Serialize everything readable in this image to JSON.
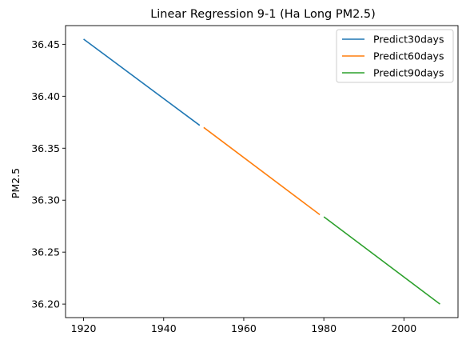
{
  "chart_data": {
    "type": "line",
    "title": "Linear Regression 9-1 (Ha Long PM2.5)",
    "xlabel": "",
    "ylabel": "PM2.5",
    "xlim": [
      1915.5,
      2013.5
    ],
    "ylim": [
      36.187,
      36.468
    ],
    "xticks": [
      1920,
      1940,
      1960,
      1980,
      2000
    ],
    "yticks": [
      36.2,
      36.25,
      36.3,
      36.35,
      36.4,
      36.45
    ],
    "ytick_labels": [
      "36.20",
      "36.25",
      "36.30",
      "36.35",
      "36.40",
      "36.45"
    ],
    "grid": false,
    "legend_position": "top-right",
    "series": [
      {
        "name": "Predict30days",
        "color": "#1f77b4",
        "x": [
          1920,
          1949
        ],
        "y": [
          36.455,
          36.372
        ]
      },
      {
        "name": "Predict60days",
        "color": "#ff7f0e",
        "x": [
          1950,
          1979
        ],
        "y": [
          36.37,
          36.286
        ]
      },
      {
        "name": "Predict90days",
        "color": "#2ca02c",
        "x": [
          1980,
          2009
        ],
        "y": [
          36.284,
          36.2
        ]
      }
    ]
  }
}
